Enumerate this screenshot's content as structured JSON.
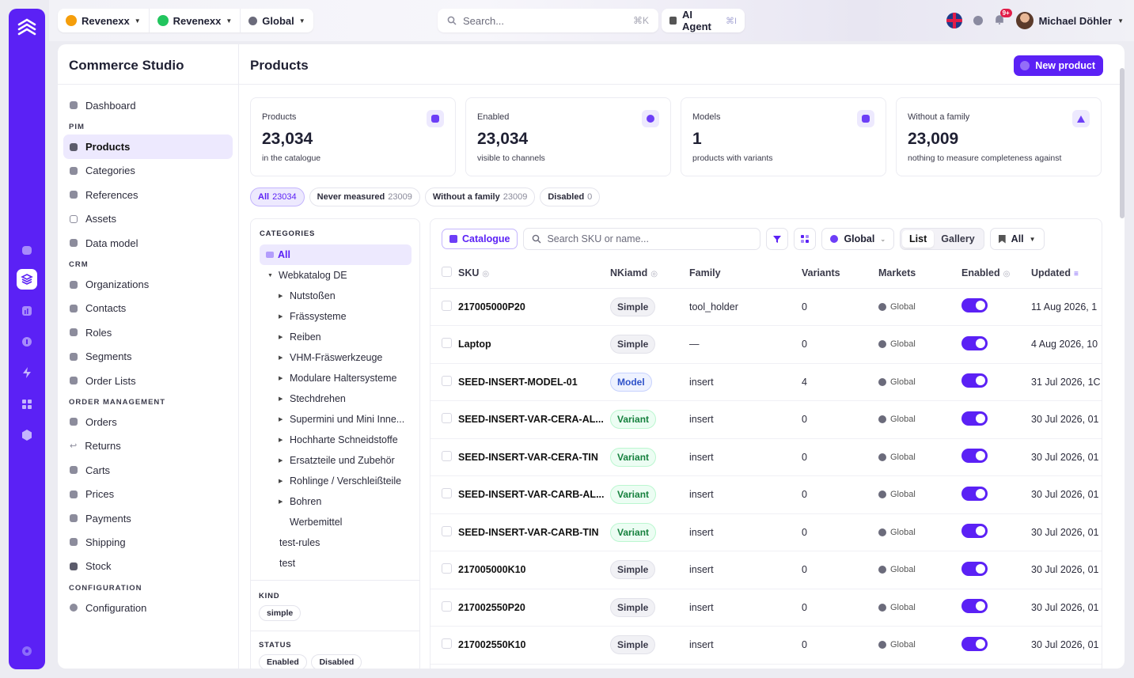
{
  "topbar": {
    "org1": "Revenexx",
    "org2": "Revenexx",
    "scope": "Global",
    "search_placeholder": "Search...",
    "search_kbd": "⌘K",
    "ai_label": "AI Agent",
    "ai_kbd": "⌘I",
    "notif_badge": "9+",
    "user_name": "Michael Döhler"
  },
  "sidebar": {
    "title": "Commerce Studio",
    "dashboard": "Dashboard",
    "sections": {
      "pim": "PIM",
      "crm": "CRM",
      "order_mgmt": "ORDER MANAGEMENT",
      "config": "CONFIGURATION"
    },
    "pim_items": [
      "Products",
      "Categories",
      "References",
      "Assets",
      "Data model"
    ],
    "crm_items": [
      "Organizations",
      "Contacts",
      "Roles",
      "Segments",
      "Order Lists"
    ],
    "order_items": [
      "Orders",
      "Returns",
      "Carts",
      "Prices",
      "Payments",
      "Shipping",
      "Stock"
    ],
    "config_items": [
      "Configuration"
    ]
  },
  "page": {
    "title": "Products",
    "new_button": "New product"
  },
  "stats": [
    {
      "label": "Products",
      "value": "23,034",
      "sub": "in the catalogue"
    },
    {
      "label": "Enabled",
      "value": "23,034",
      "sub": "visible to channels"
    },
    {
      "label": "Models",
      "value": "1",
      "sub": "products with variants"
    },
    {
      "label": "Without a family",
      "value": "23,009",
      "sub": "nothing to measure completeness against"
    }
  ],
  "filters": [
    {
      "label": "All",
      "count": "23034"
    },
    {
      "label": "Never measured",
      "count": "23009"
    },
    {
      "label": "Without a family",
      "count": "23009"
    },
    {
      "label": "Disabled",
      "count": "0"
    }
  ],
  "categories": {
    "heading": "CATEGORIES",
    "all": "All",
    "root": "Webkatalog DE",
    "children": [
      "Nutstoßen",
      "Frässysteme",
      "Reiben",
      "VHM-Fräswerkzeuge",
      "Modulare Haltersysteme",
      "Stechdrehen",
      "Supermini und Mini Inne...",
      "Hochharte Schneidstoffe",
      "Ersatzteile und Zubehör",
      "Rohlinge / Verschleißteile",
      "Bohren"
    ],
    "leaf": "Werbemittel",
    "others": [
      "test-rules",
      "test"
    ],
    "kind_heading": "KIND",
    "kind_chip": "simple",
    "status_heading": "STATUS",
    "status_chips": [
      "Enabled",
      "Disabled"
    ]
  },
  "toolbar": {
    "catalogue": "Catalogue",
    "search_placeholder": "Search SKU or name...",
    "global": "Global",
    "list": "List",
    "gallery": "Gallery",
    "all": "All"
  },
  "table": {
    "headers": {
      "sku": "SKU",
      "name_kind": "NKiamd",
      "family": "Family",
      "variants": "Variants",
      "markets": "Markets",
      "enabled": "Enabled",
      "updated": "Updated"
    },
    "rows": [
      {
        "sku": "217005000P20",
        "kind": "Simple",
        "family": "tool_holder",
        "variants": "0",
        "market": "Global",
        "updated": "11 Aug 2026, 1"
      },
      {
        "sku": "Laptop",
        "kind": "Simple",
        "family": "—",
        "variants": "0",
        "market": "Global",
        "updated": "4 Aug 2026, 10"
      },
      {
        "sku": "SEED-INSERT-MODEL-01",
        "kind": "Model",
        "family": "insert",
        "variants": "4",
        "market": "Global",
        "updated": "31 Jul 2026, 1C"
      },
      {
        "sku": "SEED-INSERT-VAR-CERA-AL...",
        "kind": "Variant",
        "family": "insert",
        "variants": "0",
        "market": "Global",
        "updated": "30 Jul 2026, 01"
      },
      {
        "sku": "SEED-INSERT-VAR-CERA-TIN",
        "kind": "Variant",
        "family": "insert",
        "variants": "0",
        "market": "Global",
        "updated": "30 Jul 2026, 01"
      },
      {
        "sku": "SEED-INSERT-VAR-CARB-AL...",
        "kind": "Variant",
        "family": "insert",
        "variants": "0",
        "market": "Global",
        "updated": "30 Jul 2026, 01"
      },
      {
        "sku": "SEED-INSERT-VAR-CARB-TIN",
        "kind": "Variant",
        "family": "insert",
        "variants": "0",
        "market": "Global",
        "updated": "30 Jul 2026, 01"
      },
      {
        "sku": "217005000K10",
        "kind": "Simple",
        "family": "insert",
        "variants": "0",
        "market": "Global",
        "updated": "30 Jul 2026, 01"
      },
      {
        "sku": "217002550P20",
        "kind": "Simple",
        "family": "insert",
        "variants": "0",
        "market": "Global",
        "updated": "30 Jul 2026, 01"
      },
      {
        "sku": "217002550K10",
        "kind": "Simple",
        "family": "insert",
        "variants": "0",
        "market": "Global",
        "updated": "30 Jul 2026, 01"
      }
    ]
  },
  "colors": {
    "accent": "#5b21f5",
    "accent_soft": "#ede9fe",
    "variant": "#15803d",
    "model": "#2f52c9"
  }
}
